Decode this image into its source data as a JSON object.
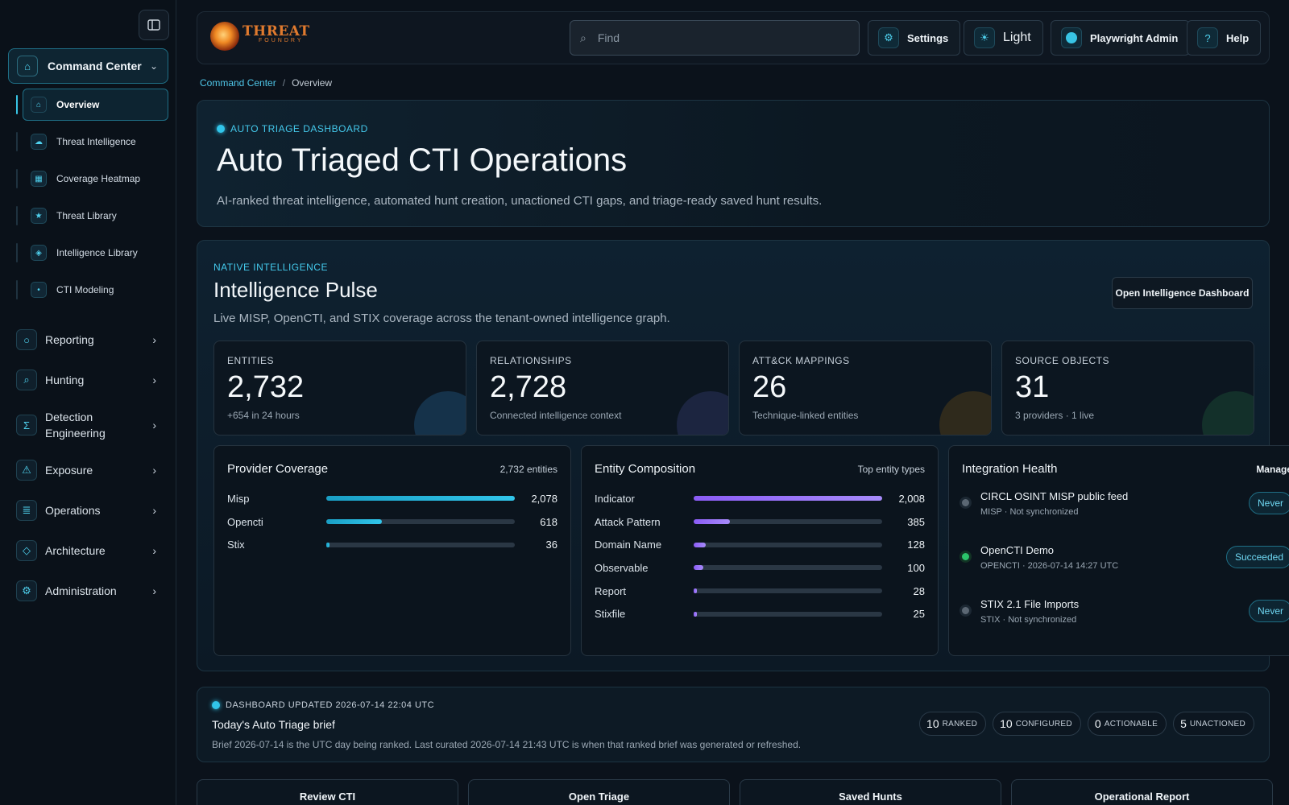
{
  "sidebar": {
    "group": {
      "label": "Command Center",
      "icon": "home-icon"
    },
    "sub_items": [
      {
        "label": "Overview",
        "icon": "home-icon",
        "active": true
      },
      {
        "label": "Threat Intelligence",
        "icon": "cloud-icon"
      },
      {
        "label": "Coverage Heatmap",
        "icon": "grid-icon"
      },
      {
        "label": "Threat Library",
        "icon": "star-icon"
      },
      {
        "label": "Intelligence Library",
        "icon": "diamond-icon"
      },
      {
        "label": "CTI Modeling",
        "icon": "dot-icon"
      }
    ],
    "nav_items": [
      {
        "label": "Reporting",
        "icon": "circle-icon"
      },
      {
        "label": "Hunting",
        "icon": "search-icon"
      },
      {
        "label": "Detection Engineering",
        "icon": "sigma-icon"
      },
      {
        "label": "Exposure",
        "icon": "warning-icon"
      },
      {
        "label": "Operations",
        "icon": "list-icon"
      },
      {
        "label": "Architecture",
        "icon": "diamond-icon"
      },
      {
        "label": "Administration",
        "icon": "gear-icon"
      }
    ]
  },
  "header": {
    "logo_text": "THREAT",
    "logo_subtext": "FOUNDRY",
    "search_placeholder": "Find",
    "settings_label": "Settings",
    "theme_label": "Light",
    "user_label": "Playwright Admin",
    "help_label": "Help"
  },
  "breadcrumb": {
    "parent": "Command Center",
    "separator": "/",
    "current": "Overview"
  },
  "hero": {
    "eyebrow": "AUTO TRIAGE DASHBOARD",
    "title": "Auto Triaged CTI Operations",
    "subtitle": "AI-ranked threat intelligence, automated hunt creation, unactioned CTI gaps, and triage-ready saved hunt results."
  },
  "pulse": {
    "eyebrow": "NATIVE INTELLIGENCE",
    "title": "Intelligence Pulse",
    "subtitle": "Live MISP, OpenCTI, and STIX coverage across the tenant-owned intelligence graph.",
    "open_button": "Open Intelligence Dashboard",
    "stats": [
      {
        "label": "ENTITIES",
        "value": "2,732",
        "note": "+654 in 24 hours",
        "color": "#15324a"
      },
      {
        "label": "RELATIONSHIPS",
        "value": "2,728",
        "note": "Connected intelligence context",
        "color": "#1c2540"
      },
      {
        "label": "ATT&CK MAPPINGS",
        "value": "26",
        "note": "Technique-linked entities",
        "color": "#2f2a1c"
      },
      {
        "label": "SOURCE OBJECTS",
        "value": "31",
        "note": "3 providers · 1 live",
        "color": "#13302a"
      }
    ],
    "provider_coverage": {
      "title": "Provider Coverage",
      "meta": "2,732 entities",
      "rows": [
        {
          "label": "Misp",
          "value": "2,078",
          "fraction": 1.0
        },
        {
          "label": "Opencti",
          "value": "618",
          "fraction": 0.297
        },
        {
          "label": "Stix",
          "value": "36",
          "fraction": 0.017
        }
      ]
    },
    "entity_composition": {
      "title": "Entity Composition",
      "meta": "Top entity types",
      "rows": [
        {
          "label": "Indicator",
          "value": "2,008",
          "fraction": 1.0
        },
        {
          "label": "Attack Pattern",
          "value": "385",
          "fraction": 0.192
        },
        {
          "label": "Domain Name",
          "value": "128",
          "fraction": 0.064
        },
        {
          "label": "Observable",
          "value": "100",
          "fraction": 0.05
        },
        {
          "label": "Report",
          "value": "28",
          "fraction": 0.014
        },
        {
          "label": "Stixfile",
          "value": "25",
          "fraction": 0.012
        }
      ]
    },
    "integration_health": {
      "title": "Integration Health",
      "manage_label": "Manage",
      "rows": [
        {
          "name": "CIRCL OSINT MISP public feed",
          "sub": "MISP · Not synchronized",
          "status": "Never",
          "dot": "gray"
        },
        {
          "name": "OpenCTI Demo",
          "sub": "OPENCTI · 2026-07-14 14:27 UTC",
          "status": "Succeeded",
          "dot": "green"
        },
        {
          "name": "STIX 2.1 File Imports",
          "sub": "STIX · Not synchronized",
          "status": "Never",
          "dot": "gray"
        }
      ]
    }
  },
  "brief": {
    "eyebrow": "DASHBOARD UPDATED 2026-07-14 22:04 UTC",
    "title": "Today's Auto Triage brief",
    "subtitle": "Brief 2026-07-14 is the UTC day being ranked. Last curated 2026-07-14 21:43 UTC is when that ranked brief was generated or refreshed.",
    "chips": [
      {
        "num": "10",
        "label": "RANKED"
      },
      {
        "num": "10",
        "label": "CONFIGURED"
      },
      {
        "num": "0",
        "label": "ACTIONABLE"
      },
      {
        "num": "5",
        "label": "UNACTIONED"
      }
    ]
  },
  "actions": [
    "Review CTI",
    "Open Triage",
    "Saved Hunts",
    "Operational Report"
  ]
}
